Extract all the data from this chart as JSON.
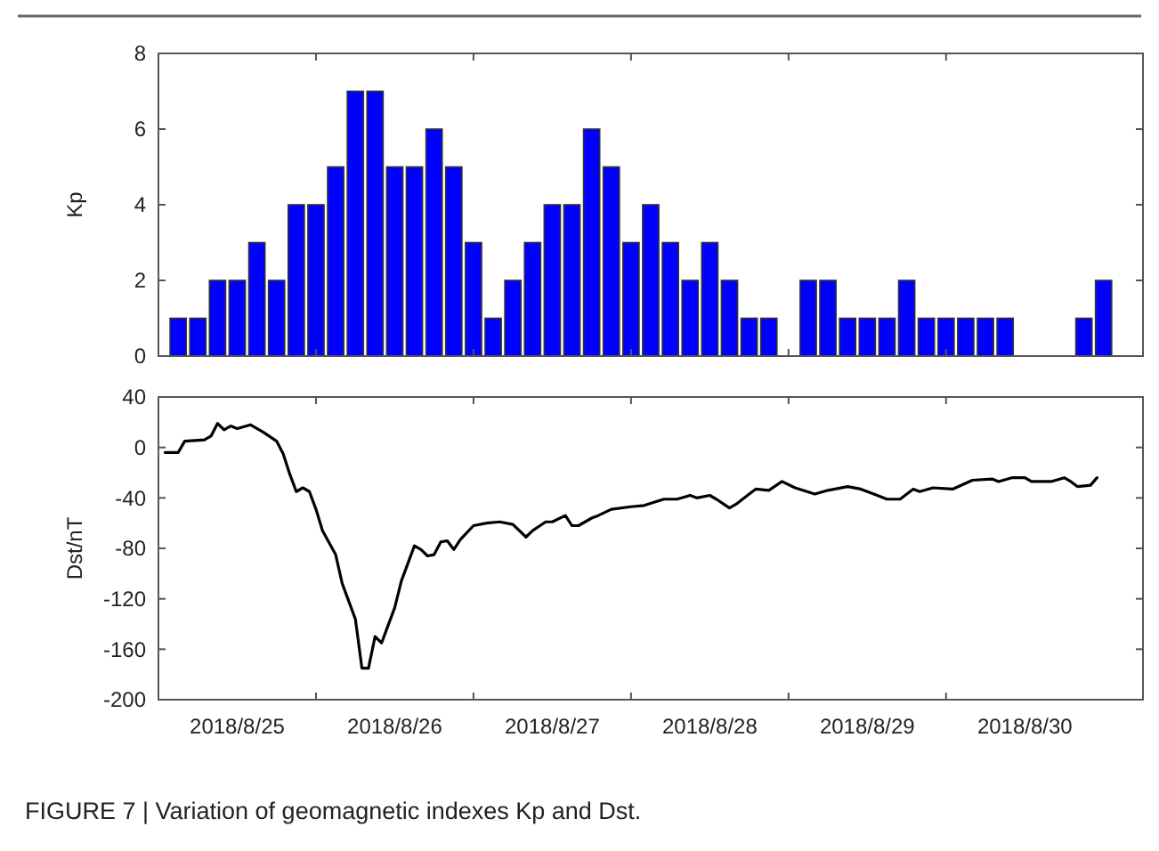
{
  "chart_data": [
    {
      "type": "bar",
      "ylabel": "Kp",
      "color": "#0000ff",
      "tick_labels": "y",
      "grid": false,
      "x": [
        "2018-08-25T03:00",
        "2018-08-25T06:00",
        "2018-08-25T09:00",
        "2018-08-25T12:00",
        "2018-08-25T15:00",
        "2018-08-25T18:00",
        "2018-08-25T21:00",
        "2018-08-26T00:00",
        "2018-08-26T03:00",
        "2018-08-26T06:00",
        "2018-08-26T09:00",
        "2018-08-26T12:00",
        "2018-08-26T15:00",
        "2018-08-26T18:00",
        "2018-08-26T21:00",
        "2018-08-27T00:00",
        "2018-08-27T03:00",
        "2018-08-27T06:00",
        "2018-08-27T09:00",
        "2018-08-27T12:00",
        "2018-08-27T15:00",
        "2018-08-27T18:00",
        "2018-08-27T21:00",
        "2018-08-28T00:00",
        "2018-08-28T03:00",
        "2018-08-28T06:00",
        "2018-08-28T09:00",
        "2018-08-28T12:00",
        "2018-08-28T15:00",
        "2018-08-28T18:00",
        "2018-08-28T21:00",
        "2018-08-29T00:00",
        "2018-08-29T03:00",
        "2018-08-29T06:00",
        "2018-08-29T09:00",
        "2018-08-29T12:00",
        "2018-08-29T15:00",
        "2018-08-29T18:00",
        "2018-08-29T21:00",
        "2018-08-30T00:00",
        "2018-08-30T03:00",
        "2018-08-30T06:00",
        "2018-08-30T09:00",
        "2018-08-30T12:00",
        "2018-08-30T15:00",
        "2018-08-30T18:00",
        "2018-08-30T21:00",
        "2018-08-31T00:00"
      ],
      "values": [
        1,
        1,
        2,
        2,
        3,
        2,
        4,
        4,
        5,
        7,
        7,
        5,
        5,
        6,
        5,
        3,
        1,
        2,
        3,
        4,
        4,
        6,
        5,
        3,
        4,
        3,
        2,
        3,
        2,
        1,
        1,
        0,
        2,
        2,
        1,
        1,
        1,
        2,
        1,
        1,
        1,
        1,
        1,
        0,
        0,
        0,
        1,
        2
      ],
      "xlim": [
        "2018-08-25T00:00",
        "2018-08-31T06:00"
      ],
      "xticks": [
        {
          "value": "2018-08-26",
          "label": null
        },
        {
          "value": "2018-08-27",
          "label": null
        },
        {
          "value": "2018-08-28",
          "label": null
        },
        {
          "value": "2018-08-29",
          "label": null
        },
        {
          "value": "2018-08-30",
          "label": null
        }
      ],
      "ylim": [
        0,
        8
      ],
      "yticks": [
        0,
        2,
        4,
        6,
        8
      ]
    },
    {
      "type": "line",
      "ylabel": "Dst/nT",
      "color": "#000000",
      "grid": false,
      "x": [
        "2018-08-25T01:00",
        "2018-08-25T03:00",
        "2018-08-25T04:00",
        "2018-08-25T07:00",
        "2018-08-25T08:00",
        "2018-08-25T09:00",
        "2018-08-25T10:00",
        "2018-08-25T11:00",
        "2018-08-25T12:00",
        "2018-08-25T14:00",
        "2018-08-25T16:00",
        "2018-08-25T18:00",
        "2018-08-25T19:00",
        "2018-08-25T20:00",
        "2018-08-25T21:00",
        "2018-08-25T22:00",
        "2018-08-25T23:00",
        "2018-08-26T00:00",
        "2018-08-26T01:00",
        "2018-08-26T03:00",
        "2018-08-26T04:00",
        "2018-08-26T06:00",
        "2018-08-26T07:00",
        "2018-08-26T08:00",
        "2018-08-26T09:00",
        "2018-08-26T10:00",
        "2018-08-26T11:00",
        "2018-08-26T12:00",
        "2018-08-26T13:00",
        "2018-08-26T15:00",
        "2018-08-26T16:00",
        "2018-08-26T17:00",
        "2018-08-26T18:00",
        "2018-08-26T19:00",
        "2018-08-26T20:00",
        "2018-08-26T21:00",
        "2018-08-26T22:00",
        "2018-08-27T00:00",
        "2018-08-27T02:00",
        "2018-08-27T04:00",
        "2018-08-27T06:00",
        "2018-08-27T08:00",
        "2018-08-27T09:00",
        "2018-08-27T11:00",
        "2018-08-27T12:00",
        "2018-08-27T14:00",
        "2018-08-27T15:00",
        "2018-08-27T16:00",
        "2018-08-27T18:00",
        "2018-08-27T19:00",
        "2018-08-27T21:00",
        "2018-08-28T00:00",
        "2018-08-28T02:00",
        "2018-08-28T05:00",
        "2018-08-28T07:00",
        "2018-08-28T09:00",
        "2018-08-28T10:00",
        "2018-08-28T12:00",
        "2018-08-28T13:00",
        "2018-08-28T15:00",
        "2018-08-28T16:00",
        "2018-08-28T18:00",
        "2018-08-28T19:00",
        "2018-08-28T21:00",
        "2018-08-28T23:00",
        "2018-08-29T01:00",
        "2018-08-29T04:00",
        "2018-08-29T06:00",
        "2018-08-29T09:00",
        "2018-08-29T11:00",
        "2018-08-29T13:00",
        "2018-08-29T15:00",
        "2018-08-29T17:00",
        "2018-08-29T19:00",
        "2018-08-29T20:00",
        "2018-08-29T22:00",
        "2018-08-30T01:00",
        "2018-08-30T04:00",
        "2018-08-30T07:00",
        "2018-08-30T08:00",
        "2018-08-30T10:00",
        "2018-08-30T12:00",
        "2018-08-30T13:00",
        "2018-08-30T16:00",
        "2018-08-30T18:00",
        "2018-08-30T19:00",
        "2018-08-30T20:00",
        "2018-08-30T22:00",
        "2018-08-30T23:00"
      ],
      "values": [
        -4,
        -4,
        5,
        6,
        9,
        19,
        14,
        17,
        15,
        18,
        12,
        5,
        -5,
        -21,
        -35,
        -32,
        -35,
        -49,
        -66,
        -85,
        -108,
        -136,
        -175,
        -175,
        -150,
        -155,
        -141,
        -127,
        -106,
        -78,
        -81,
        -86,
        -85,
        -75,
        -74,
        -81,
        -73,
        -62,
        -60,
        -59,
        -61,
        -71,
        -66,
        -59,
        -59,
        -54,
        -62,
        -62,
        -56,
        -54,
        -49,
        -47,
        -46,
        -41,
        -41,
        -38,
        -40,
        -38,
        -41,
        -48,
        -45,
        -37,
        -33,
        -34,
        -27,
        -32,
        -37,
        -34,
        -31,
        -33,
        -37,
        -41,
        -41,
        -33,
        -35,
        -32,
        -33,
        -26,
        -25,
        -27,
        -24,
        -24,
        -27,
        -27,
        -24,
        -27,
        -31,
        -30,
        -24
      ],
      "xlim": [
        "2018-08-25T00:00",
        "2018-08-31T06:00"
      ],
      "xticks": [
        {
          "value": "2018-08-25T12:00",
          "label": "2018/8/25"
        },
        {
          "value": "2018-08-26",
          "label": null
        },
        {
          "value": "2018-08-26T12:00",
          "label": "2018/8/26"
        },
        {
          "value": "2018-08-27",
          "label": null
        },
        {
          "value": "2018-08-27T12:00",
          "label": "2018/8/27"
        },
        {
          "value": "2018-08-28",
          "label": null
        },
        {
          "value": "2018-08-28T12:00",
          "label": "2018/8/28"
        },
        {
          "value": "2018-08-29",
          "label": null
        },
        {
          "value": "2018-08-29T12:00",
          "label": "2018/8/29"
        },
        {
          "value": "2018-08-30",
          "label": null
        },
        {
          "value": "2018-08-30T12:00",
          "label": "2018/8/30"
        }
      ],
      "ylim": [
        -200,
        40
      ],
      "yticks": [
        -200,
        -160,
        -120,
        -80,
        -40,
        0,
        40
      ],
      "annotations": [
        "FIGURE 7 | Variation of geomagnetic indexes Kp and Dst."
      ]
    }
  ]
}
